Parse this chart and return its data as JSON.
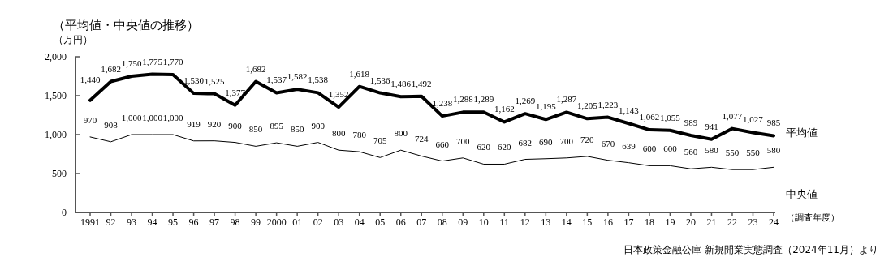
{
  "chart_data": {
    "type": "line",
    "title": "（平均値・中央値の推移）",
    "ylabel": "（万円）",
    "xlabel": "（調査年度）",
    "categories": [
      "1991",
      "92",
      "93",
      "94",
      "95",
      "96",
      "97",
      "98",
      "99",
      "2000",
      "01",
      "02",
      "03",
      "04",
      "05",
      "06",
      "07",
      "08",
      "09",
      "10",
      "11",
      "12",
      "13",
      "14",
      "15",
      "16",
      "17",
      "18",
      "19",
      "20",
      "21",
      "22",
      "23",
      "24"
    ],
    "series": [
      {
        "name": "平均値",
        "color": "#000000",
        "values": [
          1440,
          1682,
          1750,
          1775,
          1770,
          1530,
          1525,
          1377,
          1682,
          1537,
          1582,
          1538,
          1352,
          1618,
          1536,
          1486,
          1492,
          1238,
          1288,
          1289,
          1162,
          1269,
          1195,
          1287,
          1205,
          1223,
          1143,
          1062,
          1055,
          989,
          941,
          1077,
          1027,
          985
        ],
        "value_labels": [
          "1,440",
          "1,682",
          "1,750",
          "1,775",
          "1,770",
          "1,530",
          "1,525",
          "1,377",
          "1,682",
          "1,537",
          "1,582",
          "1,538",
          "1,352",
          "1,618",
          "1,536",
          "1,486",
          "1,492",
          "1,238",
          "1,288",
          "1,289",
          "1,162",
          "1,269",
          "1,195",
          "1,287",
          "1,205",
          "1,223",
          "1,143",
          "1,062",
          "1,055",
          "989",
          "941",
          "1,077",
          "1,027",
          "985"
        ]
      },
      {
        "name": "中央値",
        "color": "#000000",
        "values": [
          970,
          908,
          1000,
          1000,
          1000,
          919,
          920,
          900,
          850,
          895,
          850,
          900,
          800,
          780,
          705,
          800,
          724,
          660,
          700,
          620,
          620,
          682,
          690,
          700,
          720,
          670,
          639,
          600,
          600,
          560,
          580,
          550,
          550,
          580
        ],
        "value_labels": [
          "970",
          "908",
          "1,000",
          "1,000",
          "1,000",
          "919",
          "920",
          "900",
          "850",
          "895",
          "850",
          "900",
          "800",
          "780",
          "705",
          "800",
          "724",
          "660",
          "700",
          "620",
          "620",
          "682",
          "690",
          "700",
          "720",
          "670",
          "639",
          "600",
          "600",
          "560",
          "580",
          "550",
          "550",
          "580"
        ]
      }
    ],
    "ylim": [
      0,
      2000
    ],
    "yticks": [
      0,
      500,
      {
        "value": 1000,
        "label": "1,000"
      },
      {
        "value": 1500,
        "label": "1,500"
      },
      {
        "value": 2000,
        "label": "2,000"
      }
    ],
    "grid": false,
    "marker": "none",
    "line_style": "solid",
    "annotations": [
      "日本政策金融公庫 新規開業実態調査（2024年11月）より"
    ]
  }
}
